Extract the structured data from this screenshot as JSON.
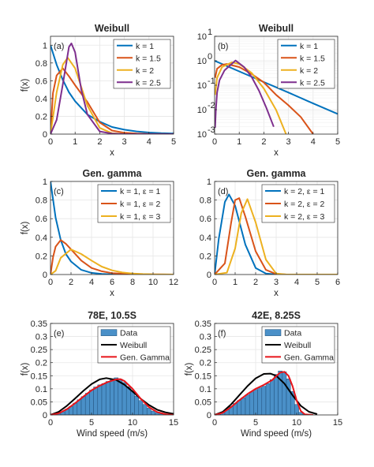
{
  "chart_data": [
    {
      "type": "line",
      "panel_label": "(a)",
      "title": "Weibull",
      "xlabel": "x",
      "ylabel": "f(x)",
      "xlim": [
        0,
        5
      ],
      "ylim": [
        0,
        1.1
      ],
      "xticks": [
        0,
        1,
        2,
        3,
        4,
        5
      ],
      "yticks": [
        0,
        0.2,
        0.4,
        0.6,
        0.8,
        1
      ],
      "x_tick_labels": [
        "0",
        "1",
        "2",
        "3",
        "4",
        "5"
      ],
      "y_tick_labels": [
        "0",
        "0.2",
        "0.4",
        "0.6",
        "0.8",
        "1"
      ],
      "grid": true,
      "legend_position": "top-right",
      "series": [
        {
          "name": "k = 1",
          "color": "#0072BD",
          "x": [
            0,
            0.25,
            0.5,
            0.75,
            1,
            1.5,
            2,
            2.5,
            3,
            3.5,
            4,
            4.5,
            5
          ],
          "y": [
            1,
            0.78,
            0.61,
            0.47,
            0.37,
            0.22,
            0.14,
            0.08,
            0.05,
            0.03,
            0.018,
            0.011,
            0.007
          ]
        },
        {
          "name": "k = 1.5",
          "color": "#D95319",
          "x": [
            0,
            0.1,
            0.25,
            0.5,
            0.75,
            1,
            1.5,
            2,
            2.5,
            3,
            3.5,
            4,
            5
          ],
          "y": [
            0,
            0.46,
            0.66,
            0.74,
            0.65,
            0.55,
            0.36,
            0.13,
            0.04,
            0.015,
            0.007,
            0.003,
            0
          ]
        },
        {
          "name": "k = 2",
          "color": "#EDB120",
          "x": [
            0,
            0.25,
            0.5,
            0.7,
            1,
            1.5,
            2,
            2.5,
            3,
            3.5,
            5
          ],
          "y": [
            0,
            0.47,
            0.78,
            0.86,
            0.74,
            0.32,
            0.07,
            0.01,
            0.001,
            0,
            0
          ]
        },
        {
          "name": "k = 2.5",
          "color": "#7E2F8E",
          "x": [
            0,
            0.25,
            0.5,
            0.75,
            0.85,
            1,
            1.25,
            1.5,
            2,
            2.5,
            3,
            5
          ],
          "y": [
            0,
            0.16,
            0.56,
            0.98,
            1.02,
            0.92,
            0.5,
            0.22,
            0.03,
            0.005,
            0,
            0
          ]
        }
      ]
    },
    {
      "type": "line",
      "panel_label": "(b)",
      "title": "Weibull",
      "xlabel": "x",
      "ylabel": "",
      "xlim": [
        0,
        5
      ],
      "ylim": [
        0.001,
        10
      ],
      "yscale": "log",
      "xticks": [
        0,
        1,
        2,
        3,
        4,
        5
      ],
      "yticks": [
        0.001,
        0.01,
        0.1,
        1,
        10
      ],
      "x_tick_labels": [
        "0",
        "1",
        "2",
        "3",
        "4",
        "5"
      ],
      "y_tick_labels": [
        {
          "base": "10",
          "exp": "-3"
        },
        {
          "base": "10",
          "exp": "-2"
        },
        {
          "base": "10",
          "exp": "-1"
        },
        {
          "base": "10",
          "exp": "0"
        },
        {
          "base": "10",
          "exp": "1"
        }
      ],
      "grid": true,
      "legend_position": "top-right",
      "series": [
        {
          "name": "k = 1",
          "color": "#0072BD",
          "x": [
            0,
            1,
            2,
            3,
            4,
            5
          ],
          "y": [
            1,
            0.368,
            0.135,
            0.05,
            0.018,
            0.0067
          ]
        },
        {
          "name": "k = 1.5",
          "color": "#D95319",
          "x": [
            0.02,
            0.1,
            0.3,
            0.5,
            1,
            1.5,
            2,
            2.5,
            3,
            3.5,
            4
          ],
          "y": [
            0.2,
            0.47,
            0.68,
            0.74,
            0.55,
            0.29,
            0.13,
            0.04,
            0.015,
            0.005,
            0.001
          ]
        },
        {
          "name": "k = 2",
          "color": "#EDB120",
          "x": [
            0.02,
            0.1,
            0.3,
            0.7,
            1,
            1.5,
            2,
            2.5,
            2.9
          ],
          "y": [
            0.04,
            0.2,
            0.55,
            0.86,
            0.74,
            0.32,
            0.073,
            0.0096,
            0.001
          ]
        },
        {
          "name": "k = 2.5",
          "color": "#7E2F8E",
          "x": [
            0.02,
            0.05,
            0.1,
            0.2,
            0.4,
            0.85,
            1.2,
            1.5,
            1.8,
            2.1,
            2.4
          ],
          "y": [
            0.0018,
            0.01,
            0.05,
            0.16,
            0.4,
            1.02,
            0.55,
            0.22,
            0.06,
            0.012,
            0.002
          ]
        }
      ]
    },
    {
      "type": "line",
      "panel_label": "(c)",
      "title": "Gen. gamma",
      "xlabel": "x",
      "ylabel": "f(x)",
      "xlim": [
        0,
        12
      ],
      "ylim": [
        0,
        1
      ],
      "xticks": [
        0,
        2,
        4,
        6,
        8,
        10,
        12
      ],
      "yticks": [
        0,
        0.2,
        0.4,
        0.6,
        0.8,
        1
      ],
      "x_tick_labels": [
        "0",
        "2",
        "4",
        "6",
        "8",
        "10",
        "12"
      ],
      "y_tick_labels": [
        "0",
        "0.2",
        "0.4",
        "0.6",
        "0.8",
        "1"
      ],
      "grid": true,
      "legend_position": "top-right",
      "series": [
        {
          "name": "k = 1,   ε = 1",
          "color": "#0072BD",
          "x": [
            0,
            0.5,
            1,
            1.5,
            2,
            3,
            4,
            5,
            6,
            8,
            12
          ],
          "y": [
            1,
            0.61,
            0.37,
            0.22,
            0.14,
            0.05,
            0.018,
            0.007,
            0.002,
            0,
            0
          ]
        },
        {
          "name": "k = 1,   ε = 2",
          "color": "#D95319",
          "x": [
            0,
            0.25,
            0.5,
            1,
            1.5,
            2,
            3,
            4,
            5,
            6,
            8,
            12
          ],
          "y": [
            0,
            0.19,
            0.3,
            0.37,
            0.33,
            0.27,
            0.15,
            0.07,
            0.035,
            0.015,
            0.003,
            0
          ]
        },
        {
          "name": "k = 1,   ε = 3",
          "color": "#EDB120",
          "x": [
            0,
            0.5,
            1,
            2,
            3,
            4,
            5,
            6,
            7,
            8,
            9,
            10,
            12
          ],
          "y": [
            0,
            0.04,
            0.18,
            0.27,
            0.22,
            0.15,
            0.085,
            0.045,
            0.022,
            0.011,
            0.005,
            0.002,
            0
          ]
        }
      ]
    },
    {
      "type": "line",
      "panel_label": "(d)",
      "title": "Gen. gamma",
      "xlabel": "x",
      "ylabel": "",
      "xlim": [
        0,
        6
      ],
      "ylim": [
        0,
        1
      ],
      "xticks": [
        0,
        1,
        2,
        3,
        4,
        5,
        6
      ],
      "yticks": [
        0,
        0.2,
        0.4,
        0.6,
        0.8,
        1
      ],
      "x_tick_labels": [
        "0",
        "1",
        "2",
        "3",
        "4",
        "5",
        "6"
      ],
      "y_tick_labels": [
        "0",
        "0.2",
        "0.4",
        "0.6",
        "0.8",
        "1"
      ],
      "grid": true,
      "legend_position": "top-right",
      "series": [
        {
          "name": "k = 2,   ε = 1",
          "color": "#0072BD",
          "x": [
            0,
            0.2,
            0.5,
            0.7,
            1,
            1.5,
            2,
            2.5,
            3,
            6
          ],
          "y": [
            0,
            0.38,
            0.78,
            0.86,
            0.74,
            0.32,
            0.07,
            0.01,
            0,
            0
          ]
        },
        {
          "name": "k = 2,   ε = 2",
          "color": "#D95319",
          "x": [
            0,
            0.5,
            0.8,
            1,
            1.2,
            1.5,
            2,
            2.5,
            3,
            3.5,
            6
          ],
          "y": [
            0,
            0.12,
            0.55,
            0.8,
            0.82,
            0.62,
            0.25,
            0.05,
            0.005,
            0,
            0
          ]
        },
        {
          "name": "k = 2,   ε = 3",
          "color": "#EDB120",
          "x": [
            0,
            0.6,
            1,
            1.3,
            1.6,
            2,
            2.5,
            3,
            3.5,
            6
          ],
          "y": [
            0,
            0.02,
            0.28,
            0.66,
            0.81,
            0.56,
            0.16,
            0.01,
            0,
            0
          ]
        }
      ]
    },
    {
      "type": "bar",
      "panel_label": "(e)",
      "title": "78E, 10.5S",
      "xlabel": "Wind speed (m/s)",
      "ylabel": "f(x)",
      "xlim": [
        0,
        15
      ],
      "ylim": [
        0,
        0.35
      ],
      "xticks": [
        0,
        5,
        10,
        15
      ],
      "yticks": [
        0,
        0.05,
        0.1,
        0.15,
        0.2,
        0.25,
        0.3,
        0.35
      ],
      "x_tick_labels": [
        "0",
        "5",
        "10",
        "15"
      ],
      "y_tick_labels": [
        "0",
        "0.05",
        "0.1",
        "0.15",
        "0.2",
        "0.25",
        "0.3",
        "0.35"
      ],
      "grid": true,
      "legend_position": "top-right",
      "histogram": {
        "name": "Data",
        "color": "#4A90C8",
        "x": [
          0.5,
          1,
          1.5,
          2,
          2.5,
          3,
          3.5,
          4,
          4.5,
          5,
          5.5,
          6,
          6.5,
          7,
          7.5,
          8,
          8.5,
          9,
          9.5,
          10,
          10.5,
          11,
          11.5,
          12,
          12.5,
          13,
          13.5
        ],
        "y": [
          0.002,
          0.006,
          0.012,
          0.022,
          0.032,
          0.045,
          0.058,
          0.07,
          0.083,
          0.095,
          0.107,
          0.115,
          0.12,
          0.128,
          0.136,
          0.142,
          0.137,
          0.124,
          0.108,
          0.09,
          0.072,
          0.055,
          0.04,
          0.026,
          0.015,
          0.008,
          0.004
        ]
      },
      "series": [
        {
          "name": "Weibull",
          "color": "#000000",
          "x": [
            0,
            1,
            2,
            3,
            4,
            5,
            6,
            6.8,
            8,
            9,
            10,
            11,
            12,
            13,
            14,
            15
          ],
          "y": [
            0,
            0.012,
            0.035,
            0.063,
            0.092,
            0.118,
            0.136,
            0.141,
            0.134,
            0.116,
            0.09,
            0.062,
            0.038,
            0.02,
            0.01,
            0.004
          ]
        },
        {
          "name": "Gen. Gamma",
          "color": "#E8141A",
          "x": [
            0,
            1,
            2,
            3,
            4,
            5,
            6,
            7,
            8,
            8.5,
            9,
            10,
            11,
            12,
            13,
            14,
            15
          ],
          "y": [
            0,
            0.006,
            0.022,
            0.045,
            0.07,
            0.094,
            0.112,
            0.126,
            0.136,
            0.137,
            0.13,
            0.1,
            0.062,
            0.03,
            0.011,
            0.003,
            0
          ]
        }
      ]
    },
    {
      "type": "bar",
      "panel_label": "(f)",
      "title": "42E, 8.25S",
      "xlabel": "Wind speed (m/s)",
      "ylabel": "f(x)",
      "xlim": [
        0,
        15
      ],
      "ylim": [
        0,
        0.35
      ],
      "xticks": [
        0,
        5,
        10,
        15
      ],
      "yticks": [
        0,
        0.05,
        0.1,
        0.15,
        0.2,
        0.25,
        0.3,
        0.35
      ],
      "x_tick_labels": [
        "0",
        "5",
        "10",
        "15"
      ],
      "y_tick_labels": [
        "0",
        "0.05",
        "0.1",
        "0.15",
        "0.2",
        "0.25",
        "0.3",
        "0.35"
      ],
      "grid": true,
      "legend_position": "top-right",
      "histogram": {
        "name": "Data",
        "color": "#4A90C8",
        "x": [
          0.5,
          1,
          1.5,
          2,
          2.5,
          3,
          3.5,
          4,
          4.5,
          5,
          5.5,
          6,
          6.5,
          7,
          7.5,
          8,
          8.5,
          9,
          9.5,
          10,
          10.5,
          11
        ],
        "y": [
          0.003,
          0.01,
          0.02,
          0.032,
          0.044,
          0.055,
          0.066,
          0.077,
          0.088,
          0.097,
          0.104,
          0.11,
          0.12,
          0.135,
          0.155,
          0.168,
          0.165,
          0.138,
          0.09,
          0.04,
          0.01,
          0.002
        ]
      },
      "series": [
        {
          "name": "Weibull",
          "color": "#000000",
          "x": [
            0,
            1,
            2,
            3,
            4,
            5,
            6,
            6.8,
            7.5,
            8.5,
            9.5,
            10.5,
            11.5,
            12.5
          ],
          "y": [
            0,
            0.012,
            0.04,
            0.075,
            0.11,
            0.14,
            0.157,
            0.158,
            0.15,
            0.12,
            0.075,
            0.035,
            0.012,
            0.003
          ]
        },
        {
          "name": "Gen. Gamma",
          "color": "#E8141A",
          "x": [
            0,
            1,
            2,
            3,
            4,
            5,
            6,
            7,
            7.5,
            8,
            8.5,
            9,
            9.5,
            10,
            10.5,
            11,
            12
          ],
          "y": [
            0,
            0.008,
            0.03,
            0.056,
            0.08,
            0.1,
            0.115,
            0.133,
            0.148,
            0.162,
            0.165,
            0.15,
            0.11,
            0.055,
            0.015,
            0.002,
            0
          ]
        }
      ]
    }
  ]
}
